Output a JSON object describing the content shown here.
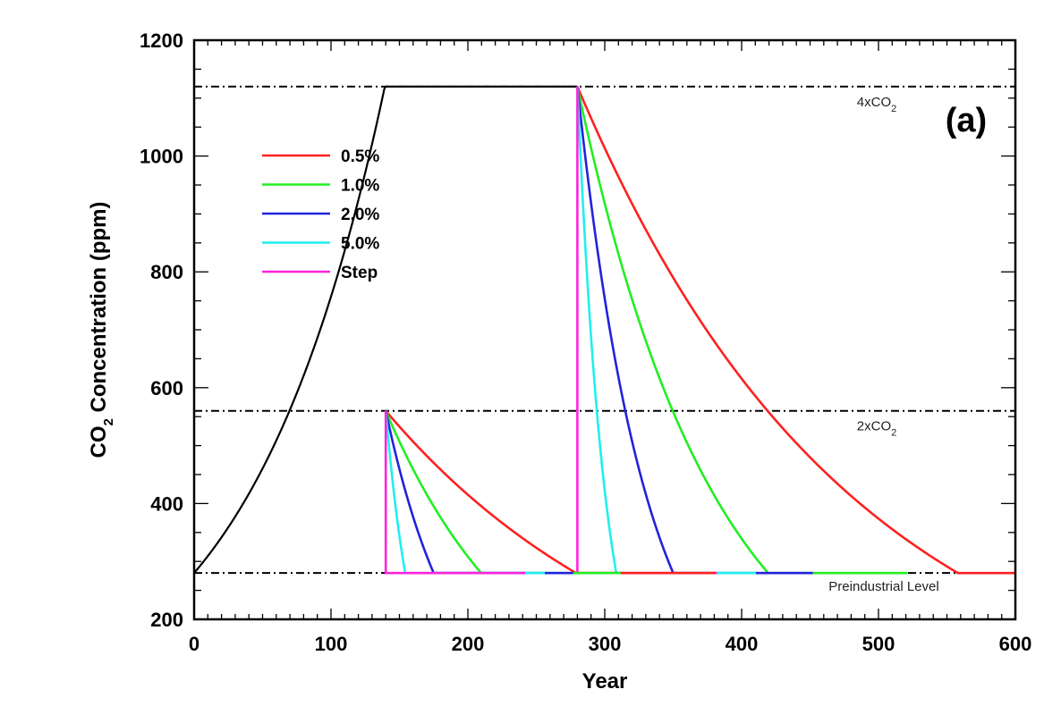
{
  "chart_data": {
    "type": "line",
    "title": "",
    "panel_label": "(a)",
    "xlabel": "Year",
    "ylabel_main": "CO",
    "ylabel_sub": "2",
    "ylabel_rest": " Concentration (ppm)",
    "xlim": [
      0,
      600
    ],
    "ylim": [
      200,
      1200
    ],
    "xticks": [
      0,
      100,
      200,
      300,
      400,
      500,
      600
    ],
    "yticks": [
      200,
      400,
      600,
      800,
      1000,
      1200
    ],
    "x_minor_step": 10,
    "y_minor_step": 50,
    "grid": false,
    "legend_placement": "upper-left",
    "preindustrial": 280,
    "ramp": {
      "rate_percent": 1.0,
      "start_year": 0,
      "end_year": 280,
      "color": "#000000"
    },
    "reference_lines": [
      {
        "value": 1120,
        "label": "4xCO",
        "label_sub": "2"
      },
      {
        "value": 560,
        "label": "2xCO",
        "label_sub": "2"
      },
      {
        "value": 280,
        "label": "Preindustrial Level",
        "label_sub": ""
      }
    ],
    "pulses": [
      {
        "start_year": 280,
        "peak_ppm": 1120
      },
      {
        "start_year": 140,
        "peak_ppm": 560
      }
    ],
    "hold_years_after_return": 102,
    "series": [
      {
        "name": "0.5%",
        "rate_percent": 0.5,
        "color": "#ff2020"
      },
      {
        "name": "1.0%",
        "rate_percent": 1.0,
        "color": "#22ee22"
      },
      {
        "name": "2.0%",
        "rate_percent": 2.0,
        "color": "#2222dd"
      },
      {
        "name": "5.0%",
        "rate_percent": 5.0,
        "color": "#22eeee"
      },
      {
        "name": "Step",
        "rate_percent": null,
        "color": "#ff22dd"
      }
    ]
  }
}
